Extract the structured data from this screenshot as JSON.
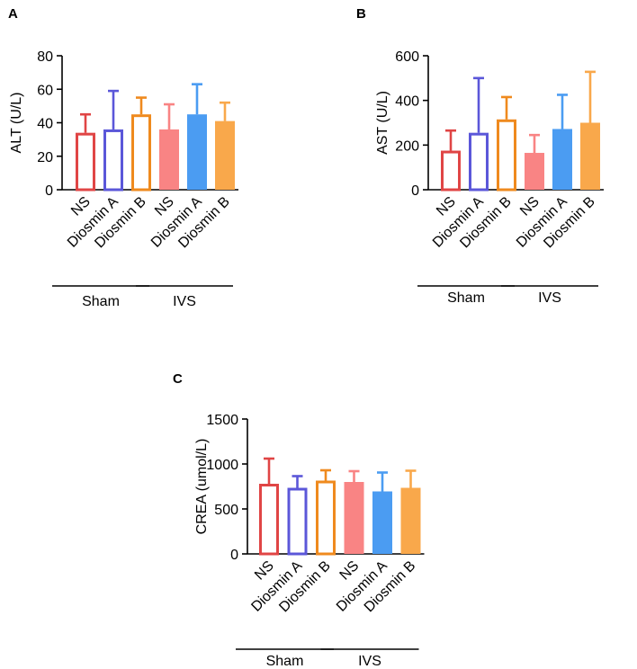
{
  "chart_data": [
    {
      "panel": "A",
      "type": "bar",
      "ylabel": "ALT (U/L)",
      "ylim": [
        0,
        80
      ],
      "yticks": [
        0,
        20,
        40,
        60,
        80
      ],
      "categories": [
        "NS",
        "Diosmin A",
        "Diosmin B",
        "NS",
        "Diosmin A",
        "Diosmin B"
      ],
      "groups": [
        {
          "label": "Sham",
          "range": [
            0,
            2
          ]
        },
        {
          "label": "IVS",
          "range": [
            3,
            5
          ]
        }
      ],
      "values": [
        34,
        36,
        45,
        36,
        45,
        41
      ],
      "errors": [
        11,
        23,
        10,
        15,
        18,
        11
      ]
    },
    {
      "panel": "B",
      "type": "bar",
      "ylabel": "AST (U/L)",
      "ylim": [
        0,
        600
      ],
      "yticks": [
        0,
        200,
        400,
        600
      ],
      "categories": [
        "NS",
        "Diosmin A",
        "Diosmin B",
        "NS",
        "Diosmin A",
        "Diosmin B"
      ],
      "groups": [
        {
          "label": "Sham",
          "range": [
            0,
            2
          ]
        },
        {
          "label": "IVS",
          "range": [
            3,
            5
          ]
        }
      ],
      "values": [
        175,
        255,
        315,
        165,
        272,
        300
      ],
      "errors": [
        90,
        245,
        100,
        80,
        153,
        228
      ]
    },
    {
      "panel": "C",
      "type": "bar",
      "ylabel": "CREA (umol/L)",
      "ylim": [
        0,
        1500
      ],
      "yticks": [
        0,
        500,
        1000,
        1500
      ],
      "categories": [
        "NS",
        "Diosmin A",
        "Diosmin B",
        "NS",
        "Diosmin A",
        "Diosmin B"
      ],
      "groups": [
        {
          "label": "Sham",
          "range": [
            0,
            2
          ]
        },
        {
          "label": "IVS",
          "range": [
            3,
            5
          ]
        }
      ],
      "values": [
        780,
        735,
        815,
        800,
        695,
        735
      ],
      "errors": [
        280,
        130,
        115,
        120,
        210,
        190
      ]
    }
  ],
  "bar_styles": [
    {
      "color": "#e04545",
      "filled": false
    },
    {
      "color": "#5b57d9",
      "filled": false
    },
    {
      "color": "#ef8a1e",
      "filled": false
    },
    {
      "color": "#f98484",
      "filled": true
    },
    {
      "color": "#4b9cf2",
      "filled": true
    },
    {
      "color": "#f9a84b",
      "filled": true
    }
  ]
}
